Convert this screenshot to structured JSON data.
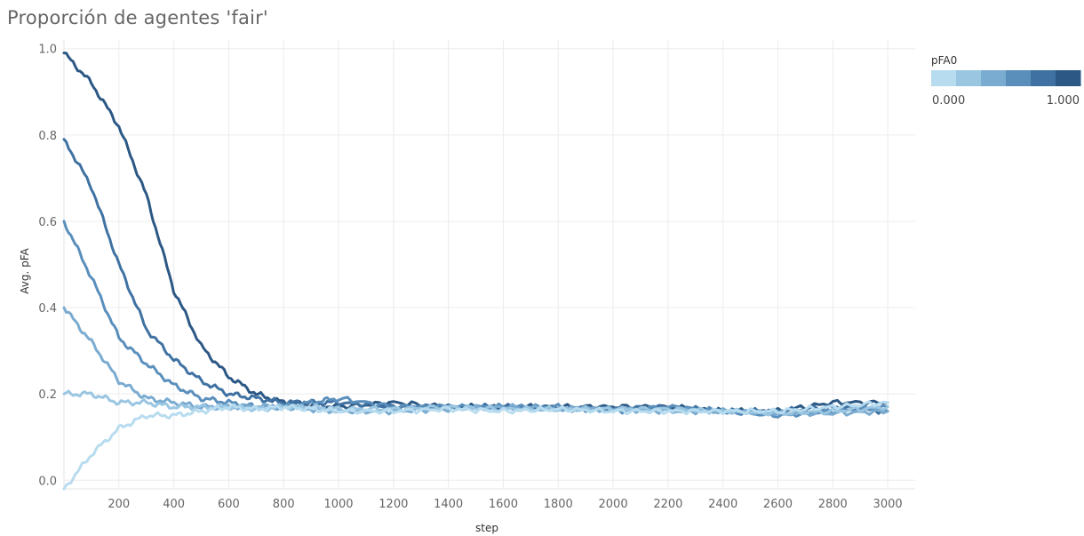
{
  "title": "Proporción de agentes 'fair'",
  "chart_data": {
    "type": "line",
    "title": "Proporción de agentes 'fair'",
    "xlabel": "step",
    "ylabel": "Avg. pFA",
    "xlim": [
      0,
      3100
    ],
    "ylim": [
      -0.02,
      1.02
    ],
    "x_ticks": [
      "200",
      "400",
      "600",
      "800",
      "1000",
      "1200",
      "1400",
      "1600",
      "1800",
      "2000",
      "2200",
      "2400",
      "2600",
      "2800",
      "3000"
    ],
    "y_ticks": [
      "0.0",
      "0.2",
      "0.4",
      "0.6",
      "0.8",
      "1.0"
    ],
    "grid": true,
    "legend": {
      "title": "pFA0",
      "type": "color-gradient",
      "min_label": "0.000",
      "max_label": "1.000",
      "colors": [
        "#b8dcef",
        "#9ac6e2",
        "#7aabd0",
        "#5a8fbc",
        "#3f72a2",
        "#2c5885"
      ],
      "placement": "top-right"
    },
    "series": [
      {
        "color": "#2c5885",
        "x": [
          0,
          100,
          200,
          300,
          400,
          500,
          600,
          700,
          800,
          900,
          1000,
          1200,
          1400,
          1600,
          1800,
          2000,
          2200,
          2400,
          2600,
          2800,
          3000
        ],
        "y": [
          0.99,
          0.92,
          0.82,
          0.66,
          0.44,
          0.31,
          0.24,
          0.2,
          0.18,
          0.175,
          0.17,
          0.18,
          0.17,
          0.17,
          0.17,
          0.17,
          0.17,
          0.16,
          0.16,
          0.18,
          0.18
        ]
      },
      {
        "color": "#3f72a2",
        "x": [
          0,
          100,
          200,
          300,
          400,
          500,
          600,
          700,
          800,
          900,
          1000,
          1200,
          1400,
          1600,
          1800,
          2000,
          2200,
          2400,
          2600,
          2800,
          3000
        ],
        "y": [
          0.79,
          0.68,
          0.5,
          0.35,
          0.28,
          0.23,
          0.2,
          0.19,
          0.18,
          0.18,
          0.18,
          0.17,
          0.17,
          0.17,
          0.165,
          0.165,
          0.17,
          0.16,
          0.16,
          0.17,
          0.16
        ]
      },
      {
        "color": "#5a8fbc",
        "x": [
          0,
          100,
          200,
          300,
          400,
          500,
          600,
          700,
          800,
          900,
          1000,
          1200,
          1400,
          1600,
          1800,
          2000,
          2200,
          2400,
          2600,
          2800,
          3000
        ],
        "y": [
          0.6,
          0.47,
          0.33,
          0.27,
          0.22,
          0.19,
          0.18,
          0.17,
          0.17,
          0.18,
          0.19,
          0.17,
          0.17,
          0.17,
          0.17,
          0.16,
          0.17,
          0.16,
          0.15,
          0.16,
          0.17
        ]
      },
      {
        "color": "#7aabd0",
        "x": [
          0,
          100,
          200,
          300,
          400,
          500,
          600,
          700,
          800,
          900,
          1000,
          1200,
          1400,
          1600,
          1800,
          2000,
          2200,
          2400,
          2600,
          2800,
          3000
        ],
        "y": [
          0.4,
          0.32,
          0.23,
          0.19,
          0.18,
          0.17,
          0.17,
          0.17,
          0.17,
          0.165,
          0.16,
          0.16,
          0.165,
          0.17,
          0.165,
          0.165,
          0.16,
          0.16,
          0.155,
          0.155,
          0.16
        ]
      },
      {
        "color": "#9ac6e2",
        "x": [
          0,
          100,
          200,
          300,
          400,
          500,
          600,
          700,
          800,
          900,
          1000,
          1200,
          1400,
          1600,
          1800,
          2000,
          2200,
          2400,
          2600,
          2800,
          3000
        ],
        "y": [
          0.2,
          0.2,
          0.18,
          0.18,
          0.17,
          0.17,
          0.17,
          0.165,
          0.17,
          0.17,
          0.165,
          0.165,
          0.17,
          0.165,
          0.165,
          0.165,
          0.165,
          0.16,
          0.155,
          0.16,
          0.17
        ]
      },
      {
        "color": "#b8dcef",
        "x": [
          0,
          100,
          200,
          300,
          400,
          500,
          600,
          700,
          800,
          900,
          1000,
          1200,
          1400,
          1600,
          1800,
          2000,
          2200,
          2400,
          2600,
          2800,
          3000
        ],
        "y": [
          -0.02,
          0.06,
          0.12,
          0.15,
          0.15,
          0.16,
          0.17,
          0.165,
          0.17,
          0.165,
          0.16,
          0.16,
          0.165,
          0.16,
          0.165,
          0.16,
          0.16,
          0.16,
          0.16,
          0.17,
          0.18
        ]
      }
    ]
  }
}
